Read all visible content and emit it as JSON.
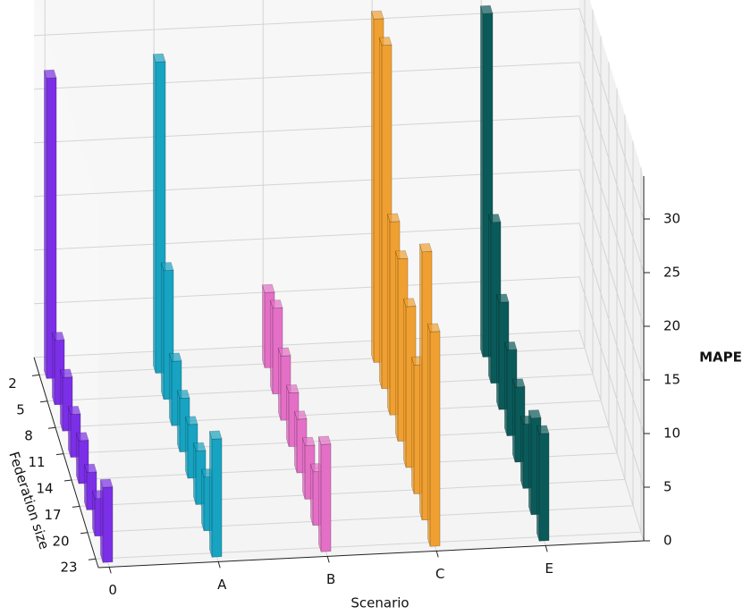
{
  "chart_data": {
    "type": "bar3d",
    "x_label": "Scenario",
    "y_label": "Federation size",
    "z_label": "MAPE",
    "categories": [
      "0",
      "A",
      "B",
      "C",
      "E"
    ],
    "federation_sizes": [
      2,
      5,
      8,
      11,
      14,
      17,
      20,
      23
    ],
    "colors": [
      "#7b2fe6",
      "#17a3c2",
      "#e46fc6",
      "#f0a030",
      "#0b5a5a"
    ],
    "values": [
      [
        28,
        6,
        5,
        4,
        4,
        3.5,
        3.5,
        7
      ],
      [
        29,
        12,
        6,
        5,
        5,
        5,
        5,
        11
      ],
      [
        7,
        8,
        6,
        5,
        5,
        5,
        5,
        10
      ],
      [
        32,
        32,
        18,
        17,
        15,
        12,
        25,
        20
      ],
      [
        32,
        15,
        10,
        8,
        7,
        6,
        9,
        10
      ]
    ],
    "xlim": [
      -0.1,
      4.9
    ],
    "ylim": [
      0,
      24
    ],
    "zlim": [
      0,
      34
    ],
    "zticks": [
      0,
      5,
      10,
      15,
      20,
      25,
      30
    ],
    "grid": true
  }
}
